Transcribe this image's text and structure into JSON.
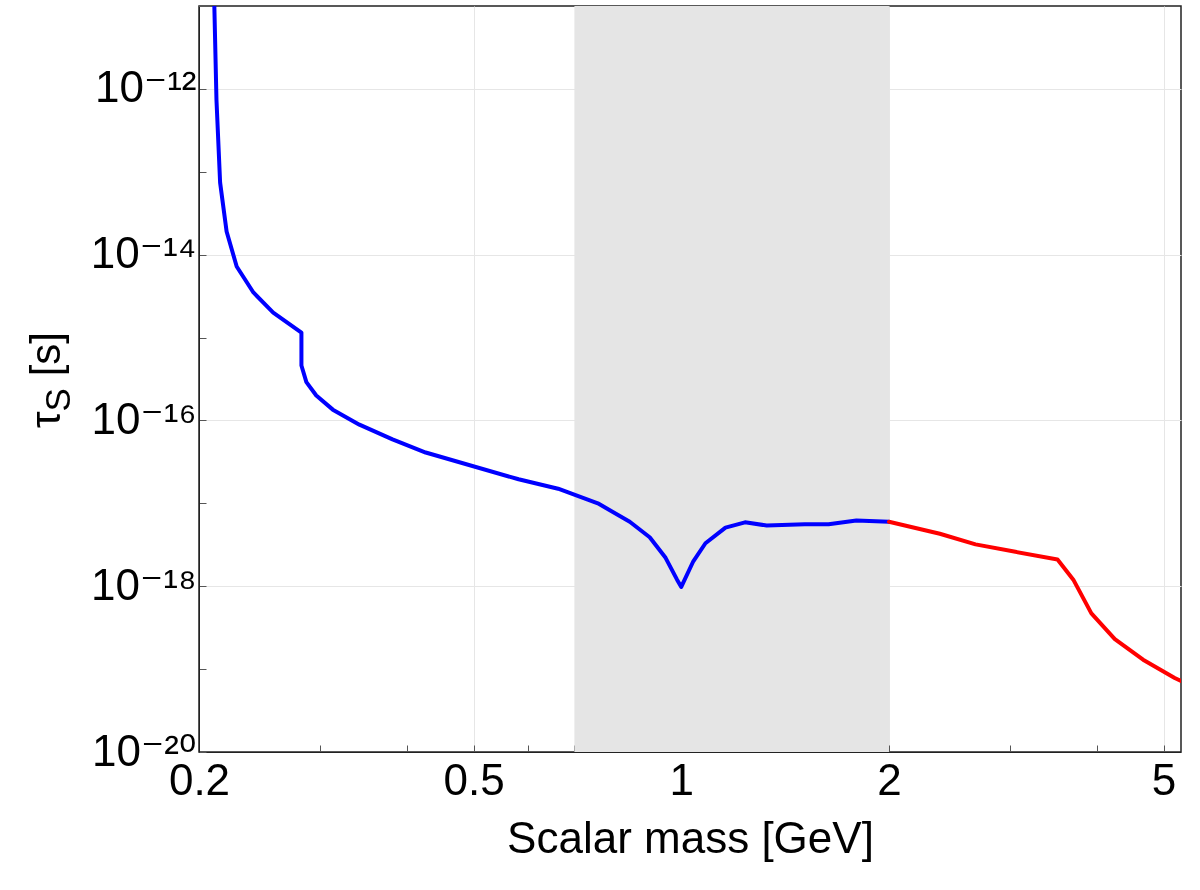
{
  "chart_data": {
    "type": "line",
    "xlabel": "Scalar mass [GeV]",
    "ylabel": "τ$_{S}$ [s]",
    "log": "xy",
    "grid": true,
    "xlim": [
      0.2,
      5.3
    ],
    "ylim": [
      1e-20,
      1e-11
    ],
    "xticks": [
      0.2,
      {
        "value": 0.3,
        "label": null
      },
      {
        "value": 0.4,
        "label": null
      },
      0.5,
      {
        "value": 0.6,
        "label": null
      },
      {
        "value": 0.7,
        "label": null
      },
      {
        "value": 0.8,
        "label": null
      },
      {
        "value": 0.9,
        "label": null
      },
      1,
      2,
      {
        "value": 3,
        "label": null
      },
      {
        "value": 4,
        "label": null
      },
      5
    ],
    "yticks": [
      {
        "value": 1e-20,
        "label": "10⁻²⁰"
      },
      {
        "value": 1e-19,
        "label": null
      },
      {
        "value": 1e-18,
        "label": "10⁻¹⁸"
      },
      {
        "value": 1e-17,
        "label": null
      },
      {
        "value": 1e-16,
        "label": "10⁻¹⁶"
      },
      {
        "value": 1e-15,
        "label": null
      },
      {
        "value": 1e-14,
        "label": "10⁻¹⁴"
      },
      {
        "value": 1e-13,
        "label": null
      },
      {
        "value": 1e-12,
        "label": "10⁻¹²"
      }
    ],
    "bands": [
      {
        "axis": "x",
        "from": 0.7,
        "to": 2,
        "color": "#e5e5e5"
      }
    ],
    "series": [
      {
        "color": "#0000ff",
        "x": [
          0.2105,
          0.212,
          0.2146,
          0.2193,
          0.2268,
          0.2398,
          0.2562,
          0.2815,
          0.2815,
          0.2862,
          0.2958,
          0.3126,
          0.3416,
          0.3815,
          0.4262,
          0.581,
          0.663,
          0.757,
          0.842,
          0.9,
          0.949,
          0.986,
          1.0,
          1.041,
          1.084,
          1.159,
          1.237,
          1.33,
          1.51,
          1.635,
          1.794,
          2.0
        ],
        "values": [
          1e-11,
          7.4e-13,
          7.4e-14,
          1.9e-14,
          7.2e-15,
          3.5e-15,
          2e-15,
          1.15e-15,
          4.6e-16,
          2.9e-16,
          2e-16,
          1.35e-16,
          8.9e-17,
          5.9e-17,
          4.1e-17,
          1.95e-17,
          1.5e-17,
          1e-17,
          6e-18,
          3.9e-18,
          2.2e-18,
          1.2e-18,
          9.8e-19,
          2e-18,
          3.3e-18,
          5.1e-18,
          5.9e-18,
          5.4e-18,
          5.6e-18,
          5.6e-18,
          6.2e-18,
          6e-18
        ]
      },
      {
        "color": "#ff0000",
        "x": [
          2.0,
          2.37,
          2.67,
          3.05,
          3.51,
          3.7,
          3.93,
          4.25,
          4.67,
          5.19,
          5.3
        ],
        "values": [
          6e-18,
          4.3e-18,
          3.2e-18,
          2.6e-18,
          2.1e-18,
          1.2e-18,
          4.7e-19,
          2.3e-19,
          1.3e-19,
          7.8e-20,
          7.2e-20
        ]
      }
    ]
  }
}
